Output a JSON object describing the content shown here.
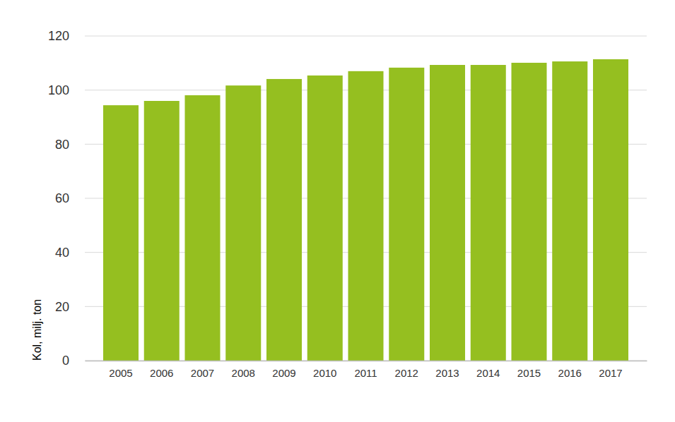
{
  "chart_data": {
    "type": "bar",
    "y_label": "Kol, milj. ton",
    "categories": [
      "2005",
      "2006",
      "2007",
      "2008",
      "2009",
      "2010",
      "2011",
      "2012",
      "2013",
      "2014",
      "2015",
      "2016",
      "2017"
    ],
    "values": [
      94.4,
      96.0,
      98.1,
      101.7,
      104.1,
      105.4,
      107.0,
      108.3,
      109.3,
      109.3,
      110.1,
      110.6,
      111.4
    ],
    "color": "#95bf20",
    "ylim": [
      0,
      120
    ],
    "yticks": [
      0,
      20,
      40,
      60,
      80,
      100,
      120
    ],
    "grid": true
  }
}
